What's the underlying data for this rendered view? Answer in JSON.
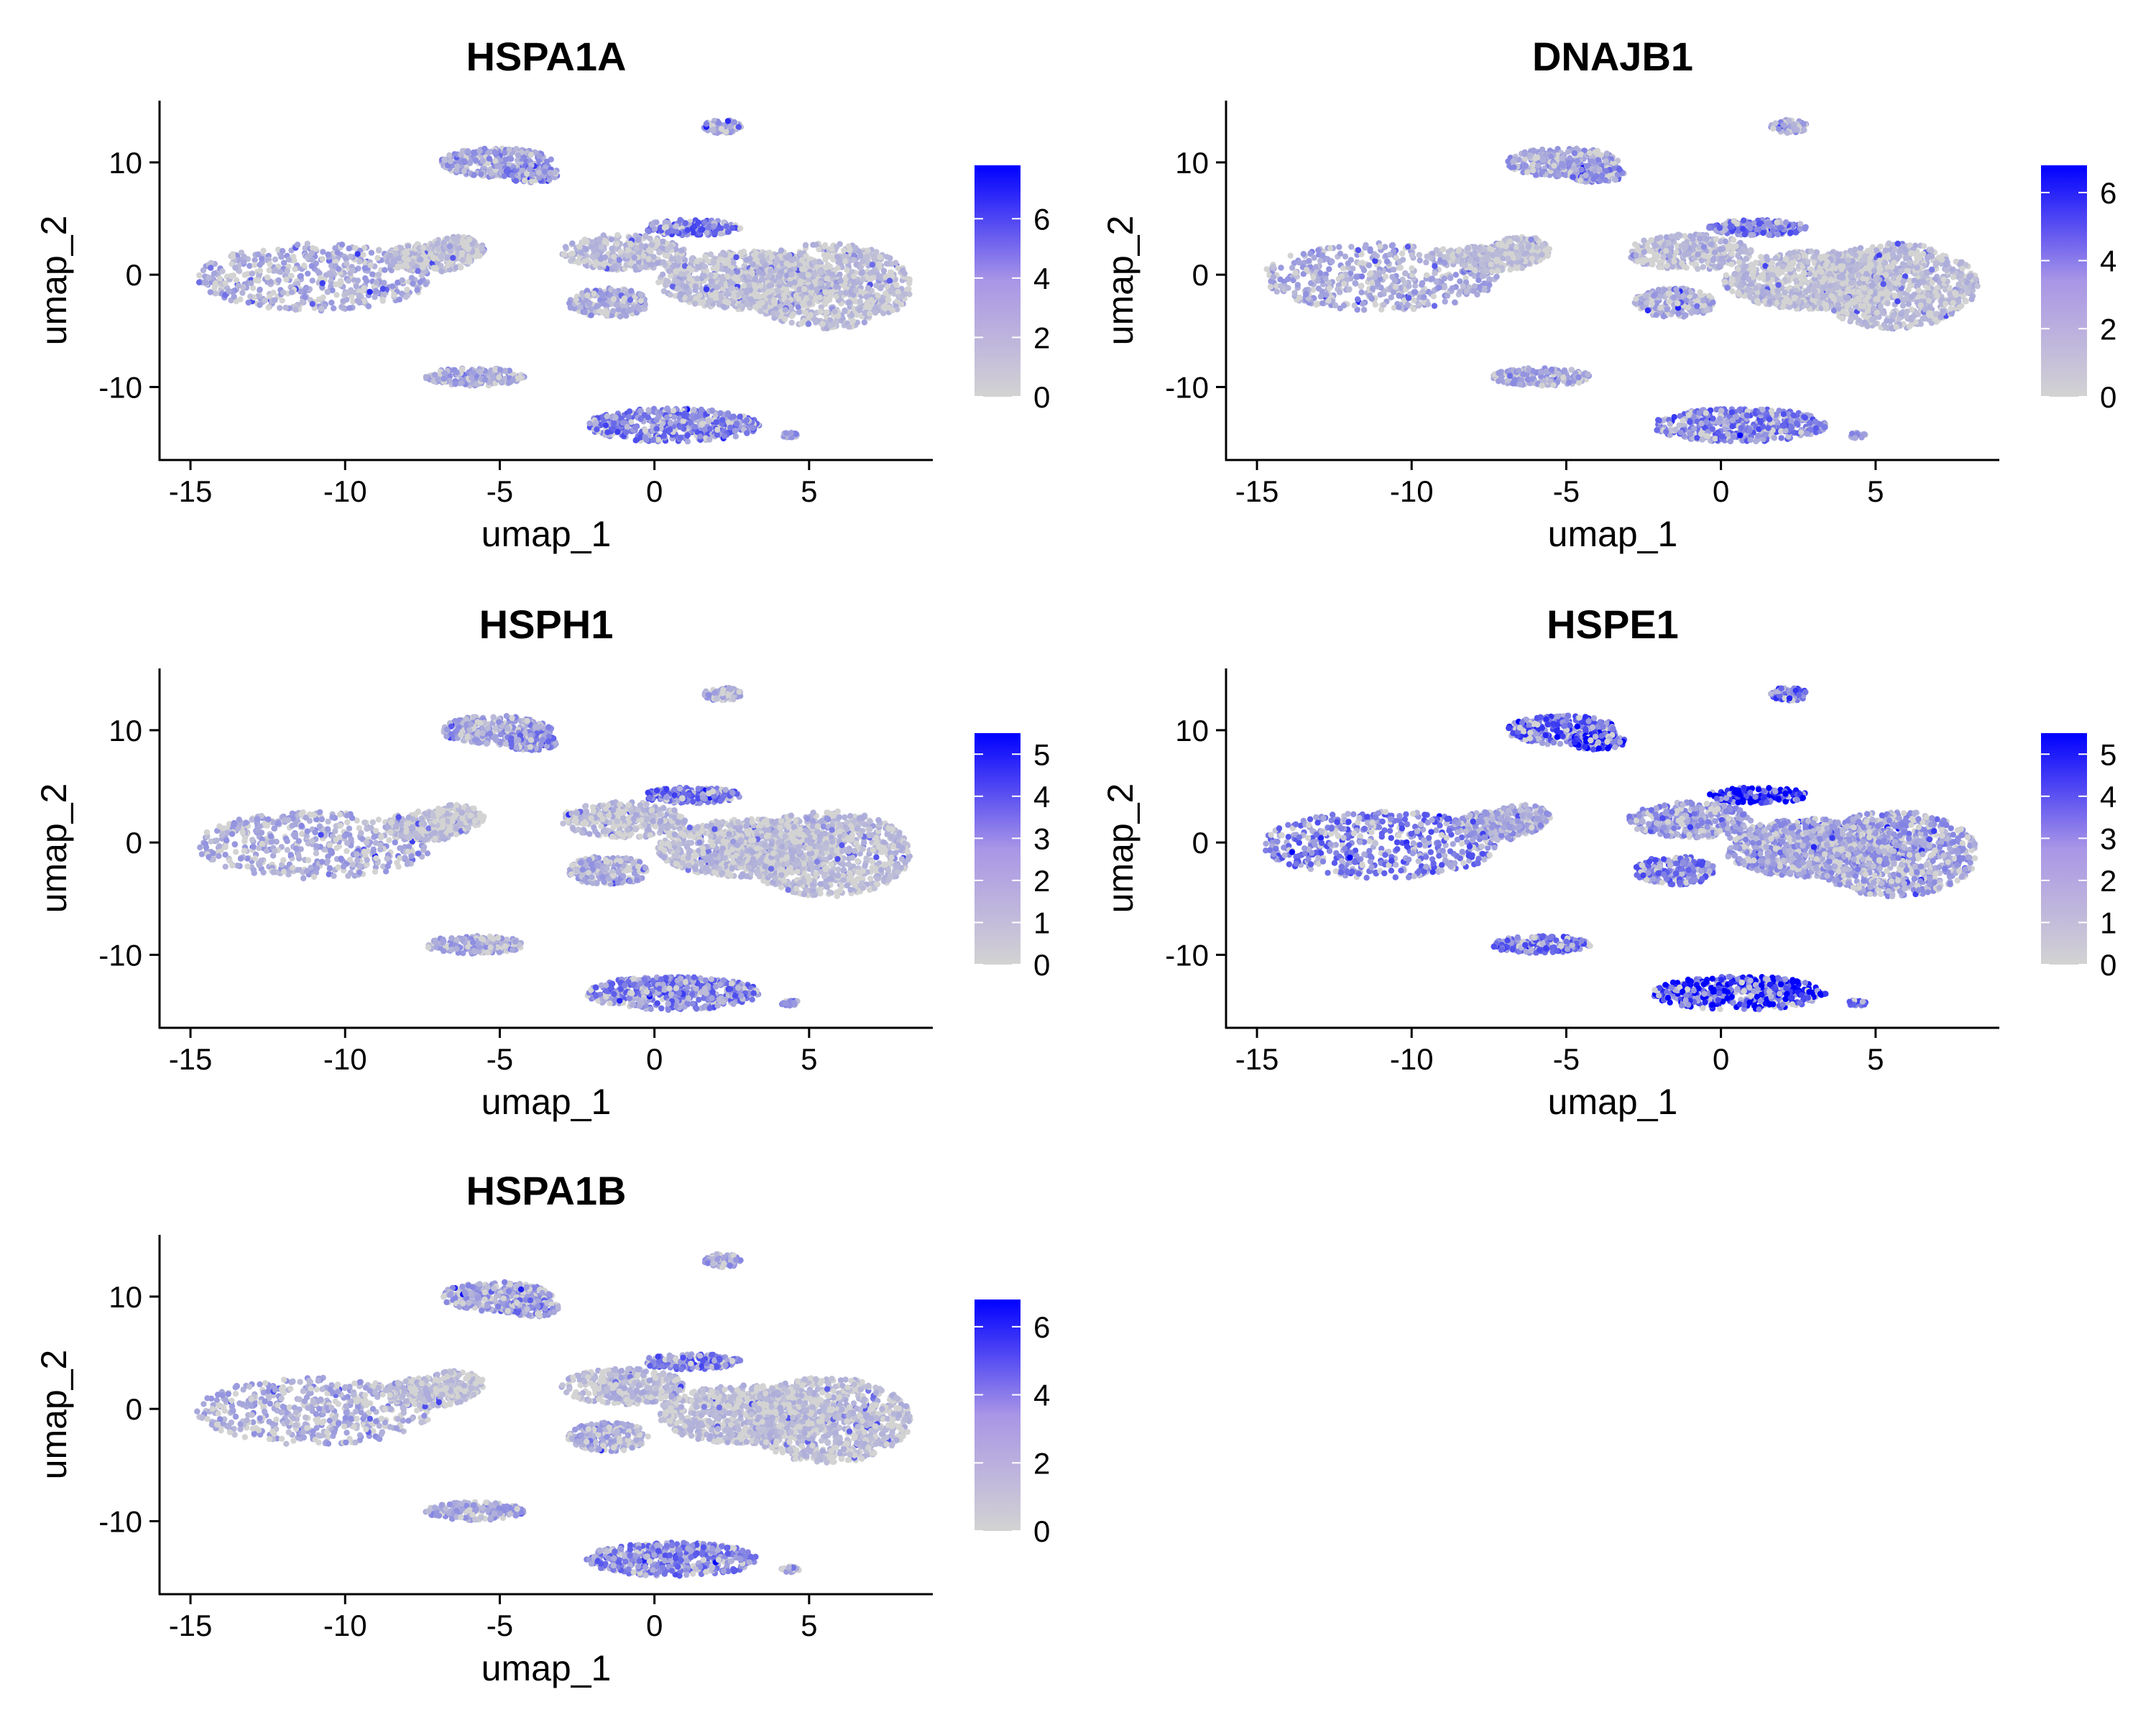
{
  "chart_data": [
    {
      "type": "scatter",
      "title": "HSPA1A",
      "xlabel": "umap_1",
      "ylabel": "umap_2",
      "xlim": [
        -16,
        9
      ],
      "ylim": [
        -16.5,
        15.5
      ],
      "xticks": [
        -15,
        -10,
        -5,
        0,
        5
      ],
      "yticks": [
        -10,
        0,
        10
      ],
      "colorbar": {
        "min": 0,
        "max": 7.8,
        "ticks": [
          0,
          2,
          4,
          6
        ],
        "low_color": "#d3d3d3",
        "high_color": "#0000ff"
      },
      "grid": false,
      "legend": "colorbar right"
    },
    {
      "type": "scatter",
      "title": "DNAJB1",
      "xlabel": "umap_1",
      "ylabel": "umap_2",
      "xlim": [
        -16,
        9
      ],
      "ylim": [
        -16.5,
        15.5
      ],
      "xticks": [
        -15,
        -10,
        -5,
        0,
        5
      ],
      "yticks": [
        -10,
        0,
        10
      ],
      "colorbar": {
        "min": 0,
        "max": 6.8,
        "ticks": [
          0,
          2,
          4,
          6
        ],
        "low_color": "#d3d3d3",
        "high_color": "#0000ff"
      },
      "grid": false,
      "legend": "colorbar right"
    },
    {
      "type": "scatter",
      "title": "HSPH1",
      "xlabel": "umap_1",
      "ylabel": "umap_2",
      "xlim": [
        -16,
        9
      ],
      "ylim": [
        -16.5,
        15.5
      ],
      "xticks": [
        -15,
        -10,
        -5,
        0,
        5
      ],
      "yticks": [
        -10,
        0,
        10
      ],
      "colorbar": {
        "min": 0,
        "max": 5.5,
        "ticks": [
          0,
          1,
          2,
          3,
          4,
          5
        ],
        "low_color": "#d3d3d3",
        "high_color": "#0000ff"
      },
      "grid": false,
      "legend": "colorbar right"
    },
    {
      "type": "scatter",
      "title": "HSPE1",
      "xlabel": "umap_1",
      "ylabel": "umap_2",
      "xlim": [
        -16,
        9
      ],
      "ylim": [
        -16.5,
        15.5
      ],
      "xticks": [
        -15,
        -10,
        -5,
        0,
        5
      ],
      "yticks": [
        -10,
        0,
        10
      ],
      "colorbar": {
        "min": 0,
        "max": 5.5,
        "ticks": [
          0,
          1,
          2,
          3,
          4,
          5
        ],
        "low_color": "#d3d3d3",
        "high_color": "#0000ff"
      },
      "grid": false,
      "legend": "colorbar right"
    },
    {
      "type": "scatter",
      "title": "HSPA1B",
      "xlabel": "umap_1",
      "ylabel": "umap_2",
      "xlim": [
        -16,
        9
      ],
      "ylim": [
        -16.5,
        15.5
      ],
      "xticks": [
        -15,
        -10,
        -5,
        0,
        5
      ],
      "yticks": [
        -10,
        0,
        10
      ],
      "colorbar": {
        "min": 0,
        "max": 6.8,
        "ticks": [
          0,
          2,
          4,
          6
        ],
        "low_color": "#d3d3d3",
        "high_color": "#0000ff"
      },
      "grid": false,
      "legend": "colorbar right"
    }
  ]
}
